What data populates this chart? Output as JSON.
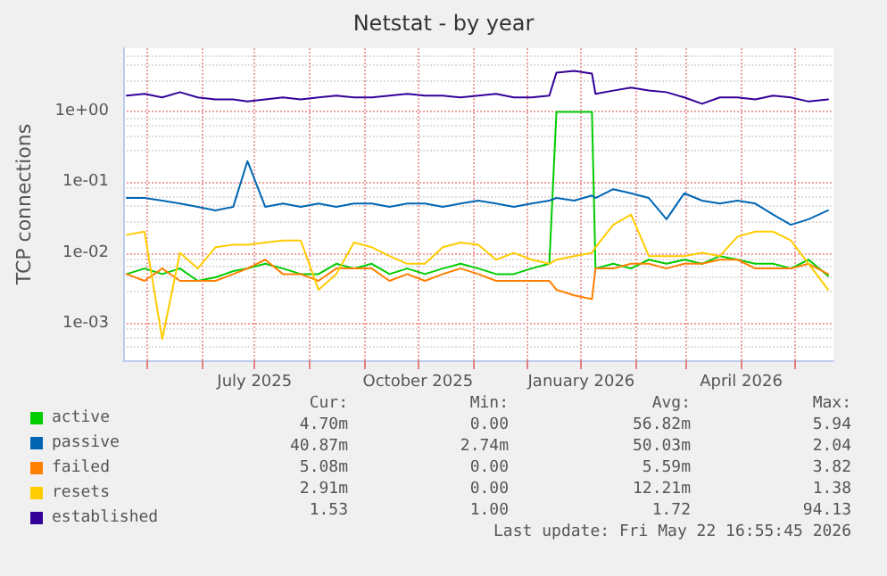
{
  "chart_data": {
    "type": "line",
    "title": "Netstat - by year",
    "ylabel": "TCP connections",
    "x": [
      "2025-04-20",
      "2025-04-30",
      "2025-05-10",
      "2025-05-20",
      "2025-05-30",
      "2025-06-09",
      "2025-06-19",
      "2025-06-27",
      "2025-07-07",
      "2025-07-17",
      "2025-07-27",
      "2025-08-06",
      "2025-08-16",
      "2025-08-26",
      "2025-09-05",
      "2025-09-15",
      "2025-09-25",
      "2025-10-05",
      "2025-10-15",
      "2025-10-25",
      "2025-11-04",
      "2025-11-14",
      "2025-11-24",
      "2025-12-04",
      "2025-12-14",
      "2025-12-18",
      "2025-12-28",
      "2026-01-07",
      "2026-01-09",
      "2026-01-19",
      "2026-01-29",
      "2026-02-08",
      "2026-02-18",
      "2026-02-28",
      "2026-03-10",
      "2026-03-20",
      "2026-03-30",
      "2026-04-09",
      "2026-04-19",
      "2026-04-29",
      "2026-05-09",
      "2026-05-20"
    ],
    "series": [
      {
        "name": "active",
        "color": "#00cc00",
        "values": [
          0.005,
          0.006,
          0.005,
          0.006,
          0.004,
          0.0045,
          0.0055,
          0.006,
          0.007,
          0.006,
          0.005,
          0.005,
          0.007,
          0.006,
          0.007,
          0.005,
          0.006,
          0.005,
          0.006,
          0.007,
          0.006,
          0.005,
          0.005,
          0.006,
          0.007,
          1.0,
          1.0,
          1.0,
          0.006,
          0.007,
          0.006,
          0.008,
          0.007,
          0.008,
          0.007,
          0.009,
          0.008,
          0.007,
          0.007,
          0.006,
          0.008,
          0.0047
        ]
      },
      {
        "name": "passive",
        "color": "#0066b3",
        "values": [
          0.06,
          0.06,
          0.055,
          0.05,
          0.045,
          0.04,
          0.045,
          0.2,
          0.045,
          0.05,
          0.045,
          0.05,
          0.045,
          0.05,
          0.05,
          0.045,
          0.05,
          0.05,
          0.045,
          0.05,
          0.055,
          0.05,
          0.045,
          0.05,
          0.055,
          0.06,
          0.055,
          0.065,
          0.06,
          0.08,
          0.07,
          0.06,
          0.03,
          0.07,
          0.055,
          0.05,
          0.055,
          0.05,
          0.035,
          0.025,
          0.03,
          0.04
        ]
      },
      {
        "name": "failed",
        "color": "#ff8000",
        "values": [
          0.005,
          0.004,
          0.006,
          0.004,
          0.004,
          0.004,
          0.005,
          0.006,
          0.008,
          0.005,
          0.005,
          0.004,
          0.006,
          0.006,
          0.006,
          0.004,
          0.005,
          0.004,
          0.005,
          0.006,
          0.005,
          0.004,
          0.004,
          0.004,
          0.004,
          0.003,
          0.0025,
          0.0022,
          0.006,
          0.006,
          0.007,
          0.007,
          0.006,
          0.007,
          0.007,
          0.008,
          0.008,
          0.006,
          0.006,
          0.006,
          0.007,
          0.005
        ]
      },
      {
        "name": "resets",
        "color": "#ffcc00",
        "values": [
          0.018,
          0.02,
          0.0006,
          0.01,
          0.006,
          0.012,
          0.013,
          0.013,
          0.014,
          0.015,
          0.015,
          0.003,
          0.005,
          0.014,
          0.012,
          0.009,
          0.007,
          0.007,
          0.012,
          0.014,
          0.013,
          0.008,
          0.01,
          0.008,
          0.007,
          0.008,
          0.009,
          0.01,
          0.012,
          0.025,
          0.035,
          0.009,
          0.009,
          0.009,
          0.01,
          0.009,
          0.017,
          0.02,
          0.02,
          0.015,
          0.007,
          0.003
        ]
      },
      {
        "name": "established",
        "color": "#330099",
        "values": [
          1.7,
          1.8,
          1.6,
          1.9,
          1.6,
          1.5,
          1.5,
          1.4,
          1.5,
          1.6,
          1.5,
          1.6,
          1.7,
          1.6,
          1.6,
          1.7,
          1.8,
          1.7,
          1.7,
          1.6,
          1.7,
          1.8,
          1.6,
          1.6,
          1.7,
          3.6,
          3.8,
          3.5,
          1.8,
          2.0,
          2.2,
          2.0,
          1.9,
          1.6,
          1.3,
          1.6,
          1.6,
          1.5,
          1.7,
          1.6,
          1.4,
          1.5
        ]
      }
    ],
    "log": "y",
    "ylim": [
      0.0003,
      8
    ],
    "yticks": [
      {
        "value": 0.001,
        "label": "1e-03"
      },
      {
        "value": 0.01,
        "label": "1e-02"
      },
      {
        "value": 0.1,
        "label": "1e-01"
      },
      {
        "value": 1,
        "label": "1e+00"
      }
    ],
    "xlim": [
      "2025-04-18",
      "2026-05-23"
    ],
    "xticks": [
      {
        "value": "2025-05-01",
        "label": null
      },
      {
        "value": "2025-06-01",
        "label": null
      },
      {
        "value": "2025-07-01",
        "label": "July 2025"
      },
      {
        "value": "2025-08-01",
        "label": null
      },
      {
        "value": "2025-09-01",
        "label": null
      },
      {
        "value": "2025-10-01",
        "label": "October 2025"
      },
      {
        "value": "2025-11-01",
        "label": null
      },
      {
        "value": "2025-12-01",
        "label": null
      },
      {
        "value": "2026-01-01",
        "label": "January 2026"
      },
      {
        "value": "2026-02-01",
        "label": null
      },
      {
        "value": "2026-03-01",
        "label": null
      },
      {
        "value": "2026-04-01",
        "label": "April 2026"
      },
      {
        "value": "2026-05-01",
        "label": null
      }
    ],
    "grid": true,
    "legend": "bottom left",
    "marker": "none",
    "line_style": "solid",
    "annotations": [
      "Cur:",
      "Min:",
      "Avg:",
      "Max:",
      "4.70m",
      "0.00",
      "56.82m",
      "5.94",
      "40.87m",
      "2.74m",
      "50.03m",
      "2.04",
      "5.08m",
      "0.00",
      "5.59m",
      "3.82",
      "2.91m",
      "0.00",
      "12.21m",
      "1.38",
      "1.53",
      "1.00",
      "1.72",
      "94.13",
      "Last update: Fri May 22 16:55:45 2026"
    ]
  }
}
